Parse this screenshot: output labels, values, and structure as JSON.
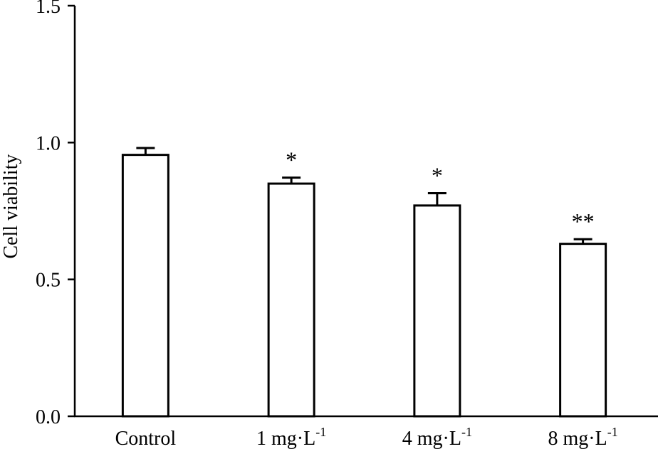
{
  "chart_data": {
    "type": "bar",
    "title": "",
    "xlabel": "",
    "ylabel": "Cell viability",
    "ylim": [
      0,
      1.5
    ],
    "yticks": [
      "0.0",
      "0.5",
      "1.0",
      "1.5"
    ],
    "grid": false,
    "categories": [
      {
        "main": "Control",
        "sup": ""
      },
      {
        "main": "1 mg·L",
        "sup": "-1"
      },
      {
        "main": "4 mg·L",
        "sup": "-1"
      },
      {
        "main": "8 mg·L",
        "sup": "-1"
      }
    ],
    "values": [
      0.955,
      0.85,
      0.77,
      0.63
    ],
    "errors": [
      0.025,
      0.022,
      0.045,
      0.017
    ],
    "significance": [
      "",
      "*",
      "*",
      "**"
    ]
  }
}
